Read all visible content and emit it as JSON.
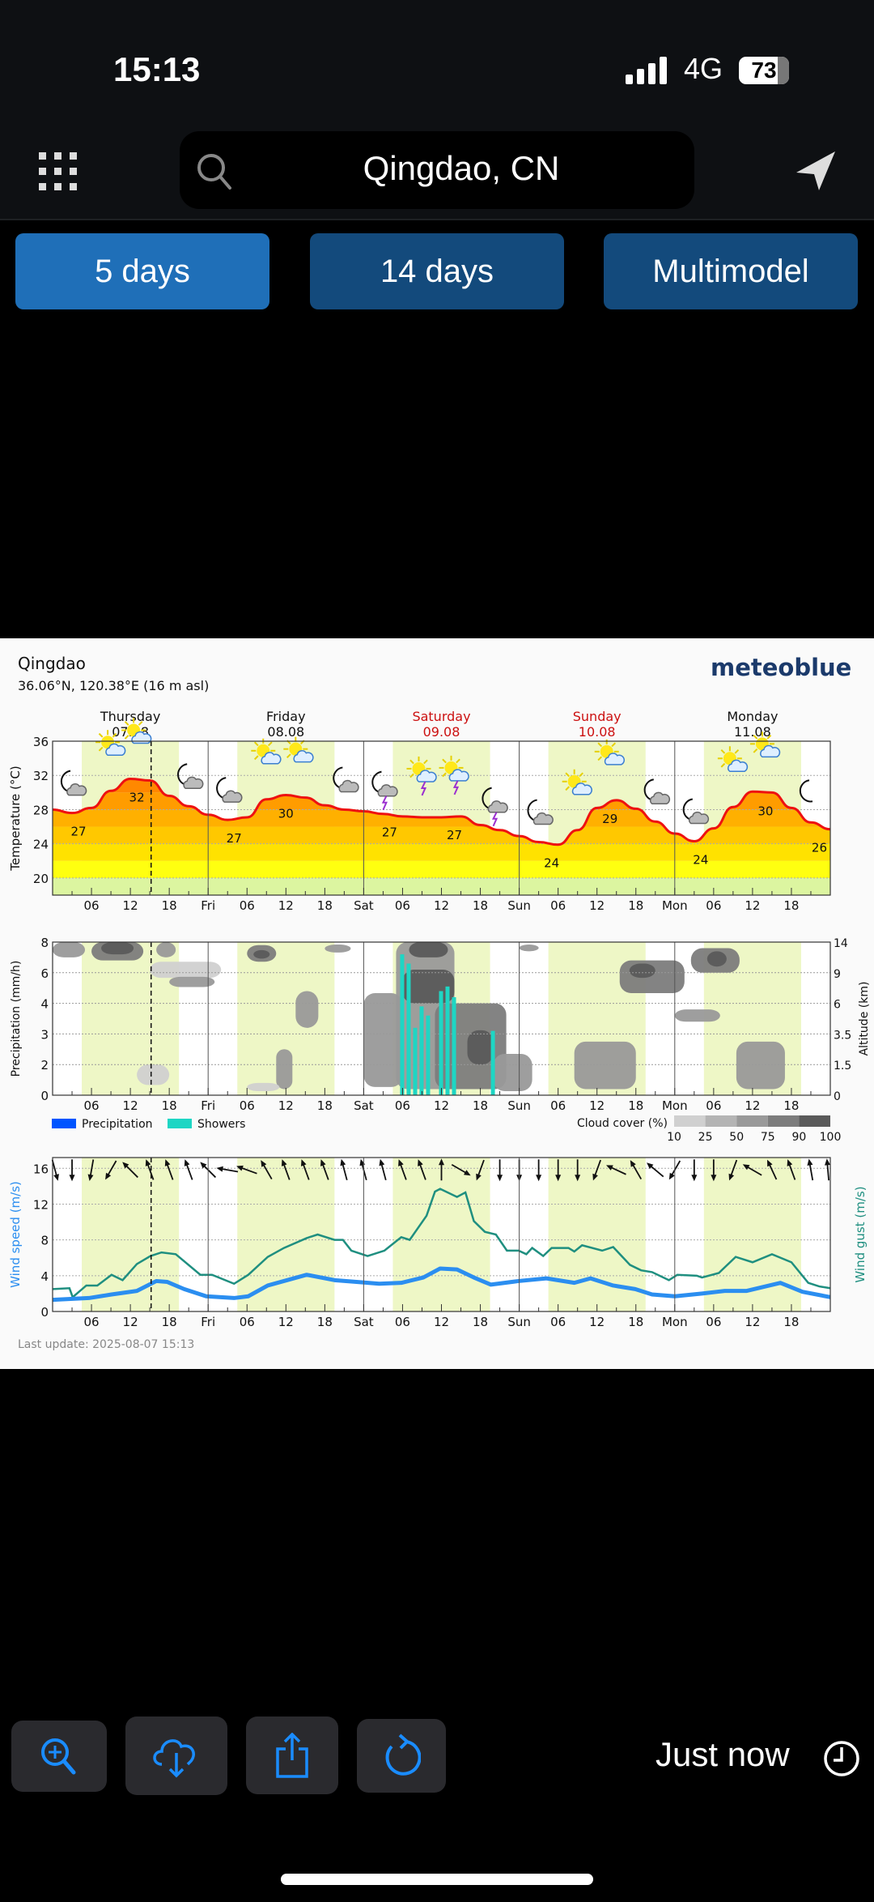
{
  "status_bar": {
    "time": "15:13",
    "network": "4G",
    "battery": "73"
  },
  "header": {
    "menu_icon": "grid-icon",
    "search_icon": "search-icon",
    "location": "Qingdao, CN",
    "locate_icon": "location-arrow-icon"
  },
  "tabs": [
    {
      "label": "5 days",
      "active": true
    },
    {
      "label": "14 days",
      "active": false
    },
    {
      "label": "Multimodel",
      "active": false
    }
  ],
  "chart_header": {
    "city": "Qingdao",
    "coords": "36.06°N, 120.38°E (16 m asl)",
    "brand": "meteoblue",
    "brand_color": "#1b3a6b"
  },
  "days": [
    {
      "name": "Thursday",
      "date": "07.08",
      "weekend": false
    },
    {
      "name": "Friday",
      "date": "08.08",
      "weekend": false
    },
    {
      "name": "Saturday",
      "date": "09.08",
      "weekend": true
    },
    {
      "name": "Sunday",
      "date": "10.08",
      "weekend": true
    },
    {
      "name": "Monday",
      "date": "11.08",
      "weekend": false
    }
  ],
  "x_tick_labels": [
    "06",
    "12",
    "18",
    "Fri",
    "06",
    "12",
    "18",
    "Sat",
    "06",
    "12",
    "18",
    "Sun",
    "06",
    "12",
    "18",
    "Mon",
    "06",
    "12",
    "18"
  ],
  "current_time_hour": 15.2,
  "daylight": {
    "start_hour": 4.5,
    "end_hour": 19.5
  },
  "chart_data": [
    {
      "type": "area",
      "ylabel": "Temperature (°C)",
      "ylim": [
        18,
        36
      ],
      "yticks": [
        20,
        24,
        28,
        32,
        36
      ],
      "x_hours": [
        0,
        3,
        6,
        9,
        12,
        15,
        18,
        21,
        24,
        27,
        30,
        33,
        36,
        39,
        42,
        45,
        48,
        51,
        54,
        57,
        60,
        63,
        66,
        69,
        72,
        75,
        78,
        81,
        84,
        87,
        90,
        93,
        96,
        99,
        102,
        105,
        108,
        111,
        114,
        117,
        120
      ],
      "temperature": [
        28.0,
        27.6,
        28.2,
        30.2,
        31.6,
        31.4,
        29.6,
        28.4,
        27.4,
        26.8,
        27.1,
        29.2,
        29.7,
        29.4,
        28.5,
        28.0,
        27.8,
        27.5,
        27.2,
        27.1,
        27.1,
        27.2,
        26.2,
        25.6,
        24.9,
        24.2,
        23.9,
        25.6,
        28.2,
        29.1,
        28.1,
        26.6,
        25.2,
        24.3,
        25.8,
        28.3,
        30.1,
        30.0,
        28.2,
        26.5,
        25.7
      ],
      "labels": [
        {
          "hour": 4,
          "text": "27",
          "pos": "below"
        },
        {
          "hour": 13,
          "text": "32",
          "pos": "below"
        },
        {
          "hour": 28,
          "text": "27",
          "pos": "below"
        },
        {
          "hour": 36,
          "text": "30",
          "pos": "below"
        },
        {
          "hour": 52,
          "text": "27",
          "pos": "below"
        },
        {
          "hour": 62,
          "text": "27",
          "pos": "below"
        },
        {
          "hour": 77,
          "text": "24",
          "pos": "below"
        },
        {
          "hour": 86,
          "text": "29",
          "pos": "below"
        },
        {
          "hour": 100,
          "text": "24",
          "pos": "below"
        },
        {
          "hour": 110,
          "text": "30",
          "pos": "below"
        },
        {
          "hour": 120,
          "text": "26",
          "pos": "below"
        }
      ],
      "band_colors": [
        "#dcf5a0",
        "#ffff10",
        "#ffe200",
        "#ffc800",
        "#ffb000",
        "#ff9c00",
        "#ff8800",
        "#ff7400",
        "#ff6000"
      ],
      "line_color": "#ee1111",
      "weather_icons": [
        {
          "hour": 3,
          "icon": "moon-cloud"
        },
        {
          "hour": 9,
          "icon": "sun-cloud"
        },
        {
          "hour": 13,
          "icon": "sun-cloud"
        },
        {
          "hour": 21,
          "icon": "moon-cloud"
        },
        {
          "hour": 27,
          "icon": "moon-cloud"
        },
        {
          "hour": 33,
          "icon": "sun-cloud"
        },
        {
          "hour": 38,
          "icon": "sun-cloud"
        },
        {
          "hour": 45,
          "icon": "moon-cloud"
        },
        {
          "hour": 51,
          "icon": "moon-thunder"
        },
        {
          "hour": 57,
          "icon": "sun-thunder"
        },
        {
          "hour": 62,
          "icon": "sun-thunder"
        },
        {
          "hour": 68,
          "icon": "moon-thunder"
        },
        {
          "hour": 75,
          "icon": "moon-cloud"
        },
        {
          "hour": 81,
          "icon": "sun-cloud"
        },
        {
          "hour": 86,
          "icon": "sun-cloud"
        },
        {
          "hour": 93,
          "icon": "moon-cloud"
        },
        {
          "hour": 99,
          "icon": "moon-cloud"
        },
        {
          "hour": 105,
          "icon": "sun-cloud"
        },
        {
          "hour": 110,
          "icon": "sun-cloud"
        },
        {
          "hour": 117,
          "icon": "moon"
        }
      ]
    },
    {
      "type": "bar",
      "ylabel": "Precipitation (mm/h)",
      "y2label": "Altitude (km)",
      "yticks": [
        0,
        2,
        3,
        4,
        6,
        8
      ],
      "y2ticks": [
        0,
        1.5,
        3.5,
        6.0,
        9.0,
        14
      ],
      "showers": {
        "hours": [
          54,
          55,
          56,
          57,
          58,
          60,
          61,
          62,
          68
        ],
        "values": [
          7.2,
          6.6,
          3.2,
          3.9,
          3.6,
          4.8,
          5.1,
          4.4,
          3.1
        ],
        "color": "#1ed6c4"
      },
      "precipitation": {
        "hours": [],
        "values": [],
        "color": "#0055ff"
      },
      "legend": [
        {
          "label": "Precipitation",
          "color": "#0055ff"
        },
        {
          "label": "Showers",
          "color": "#1ed6c4"
        }
      ],
      "cloud_cover_legend": {
        "title": "Cloud cover (%)",
        "levels": [
          "10",
          "25",
          "50",
          "75",
          "90",
          "100"
        ],
        "colors": [
          "#d0d0d0",
          "#b4b4b4",
          "#999999",
          "#7c7c7c",
          "#5a5a5a"
        ]
      },
      "cloud_patches": [
        {
          "h0": 0,
          "h1": 5,
          "a0": 11.5,
          "a1": 14,
          "cover": 50
        },
        {
          "h0": 6,
          "h1": 14,
          "a0": 11,
          "a1": 14,
          "cover": 75
        },
        {
          "h0": 7.5,
          "h1": 12.5,
          "a0": 12,
          "a1": 14,
          "cover": 90
        },
        {
          "h0": 16,
          "h1": 19,
          "a0": 11.5,
          "a1": 14,
          "cover": 50
        },
        {
          "h0": 15,
          "h1": 26,
          "a0": 8.5,
          "a1": 10.8,
          "cover": 25
        },
        {
          "h0": 18,
          "h1": 25,
          "a0": 7.6,
          "a1": 8.6,
          "cover": 50
        },
        {
          "h0": 13,
          "h1": 18,
          "a0": 0.5,
          "a1": 1.5,
          "cover": 25
        },
        {
          "h0": 30,
          "h1": 34.5,
          "a0": 10.8,
          "a1": 13.5,
          "cover": 75
        },
        {
          "h0": 31,
          "h1": 33.5,
          "a0": 11.3,
          "a1": 12.7,
          "cover": 90
        },
        {
          "h0": 42,
          "h1": 46,
          "a0": 12.3,
          "a1": 13.6,
          "cover": 50
        },
        {
          "h0": 37.5,
          "h1": 41,
          "a0": 4,
          "a1": 7.2,
          "cover": 50
        },
        {
          "h0": 34.5,
          "h1": 37,
          "a0": 0.3,
          "a1": 2.5,
          "cover": 50
        },
        {
          "h0": 30,
          "h1": 35,
          "a0": 0.2,
          "a1": 0.6,
          "cover": 25
        },
        {
          "h0": 48,
          "h1": 54,
          "a0": 0.4,
          "a1": 7,
          "cover": 50
        },
        {
          "h0": 53,
          "h1": 62,
          "a0": 0.3,
          "a1": 14,
          "cover": 50
        },
        {
          "h0": 54,
          "h1": 62,
          "a0": 6,
          "a1": 9.5,
          "cover": 90
        },
        {
          "h0": 55,
          "h1": 61,
          "a0": 11.5,
          "a1": 14,
          "cover": 90
        },
        {
          "h0": 59,
          "h1": 70,
          "a0": 0.3,
          "a1": 6,
          "cover": 75
        },
        {
          "h0": 64,
          "h1": 68,
          "a0": 1.5,
          "a1": 3.8,
          "cover": 90
        },
        {
          "h0": 68,
          "h1": 74,
          "a0": 0.2,
          "a1": 2.2,
          "cover": 50
        },
        {
          "h0": 72,
          "h1": 75,
          "a0": 12.5,
          "a1": 13.6,
          "cover": 50
        },
        {
          "h0": 80.5,
          "h1": 90,
          "a0": 0.3,
          "a1": 3,
          "cover": 50
        },
        {
          "h0": 87.5,
          "h1": 97.5,
          "a0": 7,
          "a1": 11,
          "cover": 75
        },
        {
          "h0": 89,
          "h1": 93,
          "a0": 8.5,
          "a1": 10.5,
          "cover": 90
        },
        {
          "h0": 96,
          "h1": 103,
          "a0": 4.5,
          "a1": 5.5,
          "cover": 50
        },
        {
          "h0": 98.5,
          "h1": 106,
          "a0": 9,
          "a1": 13,
          "cover": 75
        },
        {
          "h0": 101,
          "h1": 104,
          "a0": 10,
          "a1": 12.5,
          "cover": 90
        },
        {
          "h0": 105.5,
          "h1": 113,
          "a0": 0.3,
          "a1": 3,
          "cover": 50
        }
      ]
    },
    {
      "type": "line",
      "ylabel": "Wind speed (m/s)",
      "y2label": "Wind gust (m/s)",
      "ylim": [
        0,
        17.2
      ],
      "yticks": [
        0,
        4,
        8,
        12,
        16
      ],
      "wind_speed": {
        "color": "#2b8ef0",
        "points": [
          [
            0,
            1.3
          ],
          [
            5.6,
            1.5
          ],
          [
            9.1,
            1.9
          ],
          [
            13,
            2.3
          ],
          [
            16,
            3.4
          ],
          [
            17.7,
            3.3
          ],
          [
            20.3,
            2.5
          ],
          [
            23.7,
            1.7
          ],
          [
            28,
            1.5
          ],
          [
            30.2,
            1.7
          ],
          [
            33.2,
            2.9
          ],
          [
            39.2,
            4.1
          ],
          [
            43.5,
            3.5
          ],
          [
            46.9,
            3.3
          ],
          [
            50.4,
            3.1
          ],
          [
            53.8,
            3.2
          ],
          [
            57.2,
            3.8
          ],
          [
            59.8,
            4.8
          ],
          [
            62.4,
            4.7
          ],
          [
            65,
            3.8
          ],
          [
            67.6,
            3.0
          ],
          [
            71.9,
            3.4
          ],
          [
            76.2,
            3.7
          ],
          [
            80.5,
            3.2
          ],
          [
            83,
            3.7
          ],
          [
            86.5,
            2.9
          ],
          [
            89.9,
            2.5
          ],
          [
            92.5,
            1.9
          ],
          [
            96,
            1.7
          ],
          [
            100.2,
            2.0
          ],
          [
            103.7,
            2.3
          ],
          [
            107.1,
            2.3
          ],
          [
            112.3,
            3.2
          ],
          [
            115.7,
            2.2
          ],
          [
            120,
            1.6
          ]
        ]
      },
      "wind_gust": {
        "color": "#1f8f80",
        "points": [
          [
            0,
            2.5
          ],
          [
            2.6,
            2.6
          ],
          [
            3.1,
            1.6
          ],
          [
            5.2,
            2.9
          ],
          [
            6.9,
            2.9
          ],
          [
            9.1,
            4.1
          ],
          [
            10.8,
            3.5
          ],
          [
            13,
            5.3
          ],
          [
            15.1,
            6.2
          ],
          [
            16.8,
            6.6
          ],
          [
            19,
            6.4
          ],
          [
            22.8,
            4.1
          ],
          [
            24.6,
            4.1
          ],
          [
            28,
            3.1
          ],
          [
            30.2,
            4.1
          ],
          [
            33.2,
            6.1
          ],
          [
            35.7,
            7.1
          ],
          [
            39.2,
            8.2
          ],
          [
            40.9,
            8.6
          ],
          [
            43.5,
            8.0
          ],
          [
            44.8,
            8.0
          ],
          [
            46.1,
            6.8
          ],
          [
            48.6,
            6.2
          ],
          [
            51.2,
            6.8
          ],
          [
            53.8,
            8.3
          ],
          [
            55.1,
            8.0
          ],
          [
            57.7,
            10.7
          ],
          [
            59,
            13.4
          ],
          [
            59.8,
            13.7
          ],
          [
            62.4,
            12.8
          ],
          [
            63.7,
            13.3
          ],
          [
            65,
            10.1
          ],
          [
            66.7,
            8.9
          ],
          [
            68.4,
            8.6
          ],
          [
            70.1,
            6.8
          ],
          [
            71.9,
            6.8
          ],
          [
            73.1,
            6.4
          ],
          [
            74,
            7.1
          ],
          [
            75.7,
            6.2
          ],
          [
            77,
            7.1
          ],
          [
            79.6,
            7.1
          ],
          [
            80.5,
            6.7
          ],
          [
            81.7,
            7.4
          ],
          [
            84.8,
            6.8
          ],
          [
            86.5,
            7.2
          ],
          [
            89.1,
            5.2
          ],
          [
            90.8,
            4.6
          ],
          [
            92.5,
            4.4
          ],
          [
            95.1,
            3.5
          ],
          [
            96.4,
            4.1
          ],
          [
            99.4,
            4.0
          ],
          [
            100.2,
            3.8
          ],
          [
            102.8,
            4.3
          ],
          [
            105.4,
            6.1
          ],
          [
            108,
            5.5
          ],
          [
            111,
            6.4
          ],
          [
            114,
            5.5
          ],
          [
            116.6,
            3.2
          ],
          [
            118.3,
            2.8
          ],
          [
            120,
            2.6
          ]
        ]
      },
      "wind_direction_heading_deg": [
        165,
        180,
        190,
        210,
        315,
        340,
        340,
        340,
        315,
        280,
        290,
        330,
        340,
        340,
        340,
        345,
        345,
        345,
        340,
        340,
        0,
        120,
        200,
        180,
        180,
        180,
        180,
        180,
        200,
        295,
        330,
        310,
        210,
        180,
        180,
        200,
        300,
        335,
        340,
        350,
        355
      ]
    }
  ],
  "footer_note": "Last update: 2025-08-07 15:13",
  "toolbar": {
    "buttons": [
      {
        "icon": "zoom-in-icon"
      },
      {
        "icon": "cloud-download-icon"
      },
      {
        "icon": "share-icon"
      },
      {
        "icon": "refresh-icon"
      }
    ],
    "status": "Just now",
    "status_icon": "clock-icon",
    "accent": "#1a8cff"
  }
}
